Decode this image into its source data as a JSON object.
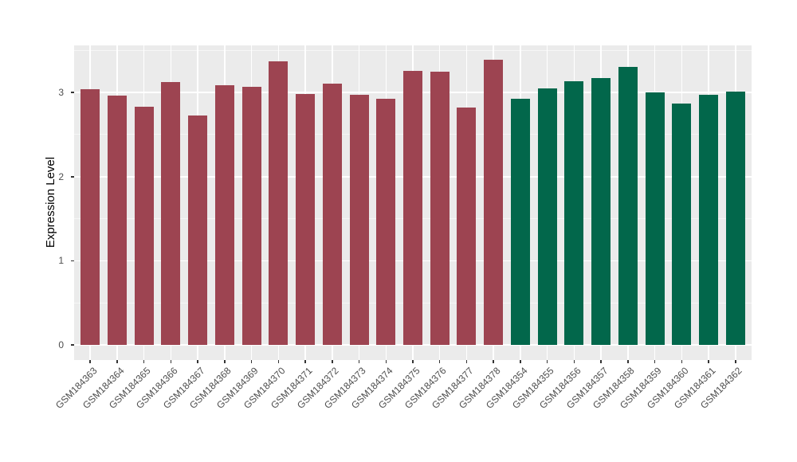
{
  "figure": {
    "background": "#ffffff"
  },
  "chart_data": {
    "type": "bar",
    "title": "",
    "xlabel": "",
    "ylabel": "Expression Level",
    "yticks": [
      0,
      1,
      2,
      3
    ],
    "ytick_labels": [
      "0",
      "1",
      "2",
      "3"
    ],
    "ylim_display": [
      -0.18,
      3.56
    ],
    "minor_gridlines_y": [
      0.5,
      1.5,
      2.5,
      3.5
    ],
    "grid": true,
    "legend": "none",
    "panel_background": "#ebebeb",
    "grid_color": "#ffffff",
    "axis_text_color": "#4d4d4d",
    "tick_color": "#333333",
    "categories": [
      "GSM184363",
      "GSM184364",
      "GSM184365",
      "GSM184366",
      "GSM184367",
      "GSM184368",
      "GSM184369",
      "GSM184370",
      "GSM184371",
      "GSM184372",
      "GSM184373",
      "GSM184374",
      "GSM184375",
      "GSM184376",
      "GSM184377",
      "GSM184378",
      "GSM184354",
      "GSM184355",
      "GSM184356",
      "GSM184357",
      "GSM184358",
      "GSM184359",
      "GSM184360",
      "GSM184361",
      "GSM184362"
    ],
    "values": [
      3.04,
      2.96,
      2.83,
      3.12,
      2.73,
      3.09,
      3.07,
      3.37,
      2.98,
      3.11,
      2.97,
      2.93,
      3.26,
      3.25,
      2.82,
      3.39,
      2.93,
      3.05,
      3.13,
      3.17,
      3.3,
      3.0,
      2.87,
      2.97,
      3.01
    ],
    "bar_colors": [
      "#9d4451",
      "#9d4451",
      "#9d4451",
      "#9d4451",
      "#9d4451",
      "#9d4451",
      "#9d4451",
      "#9d4451",
      "#9d4451",
      "#9d4451",
      "#9d4451",
      "#9d4451",
      "#9d4451",
      "#9d4451",
      "#9d4451",
      "#9d4451",
      "#02674b",
      "#02674b",
      "#02674b",
      "#02674b",
      "#02674b",
      "#02674b",
      "#02674b",
      "#02674b",
      "#02674b"
    ],
    "color_groups": [
      {
        "color": "#9d4451",
        "from": "GSM184363",
        "to": "GSM184378"
      },
      {
        "color": "#02674b",
        "from": "GSM184354",
        "to": "GSM184362"
      }
    ]
  }
}
